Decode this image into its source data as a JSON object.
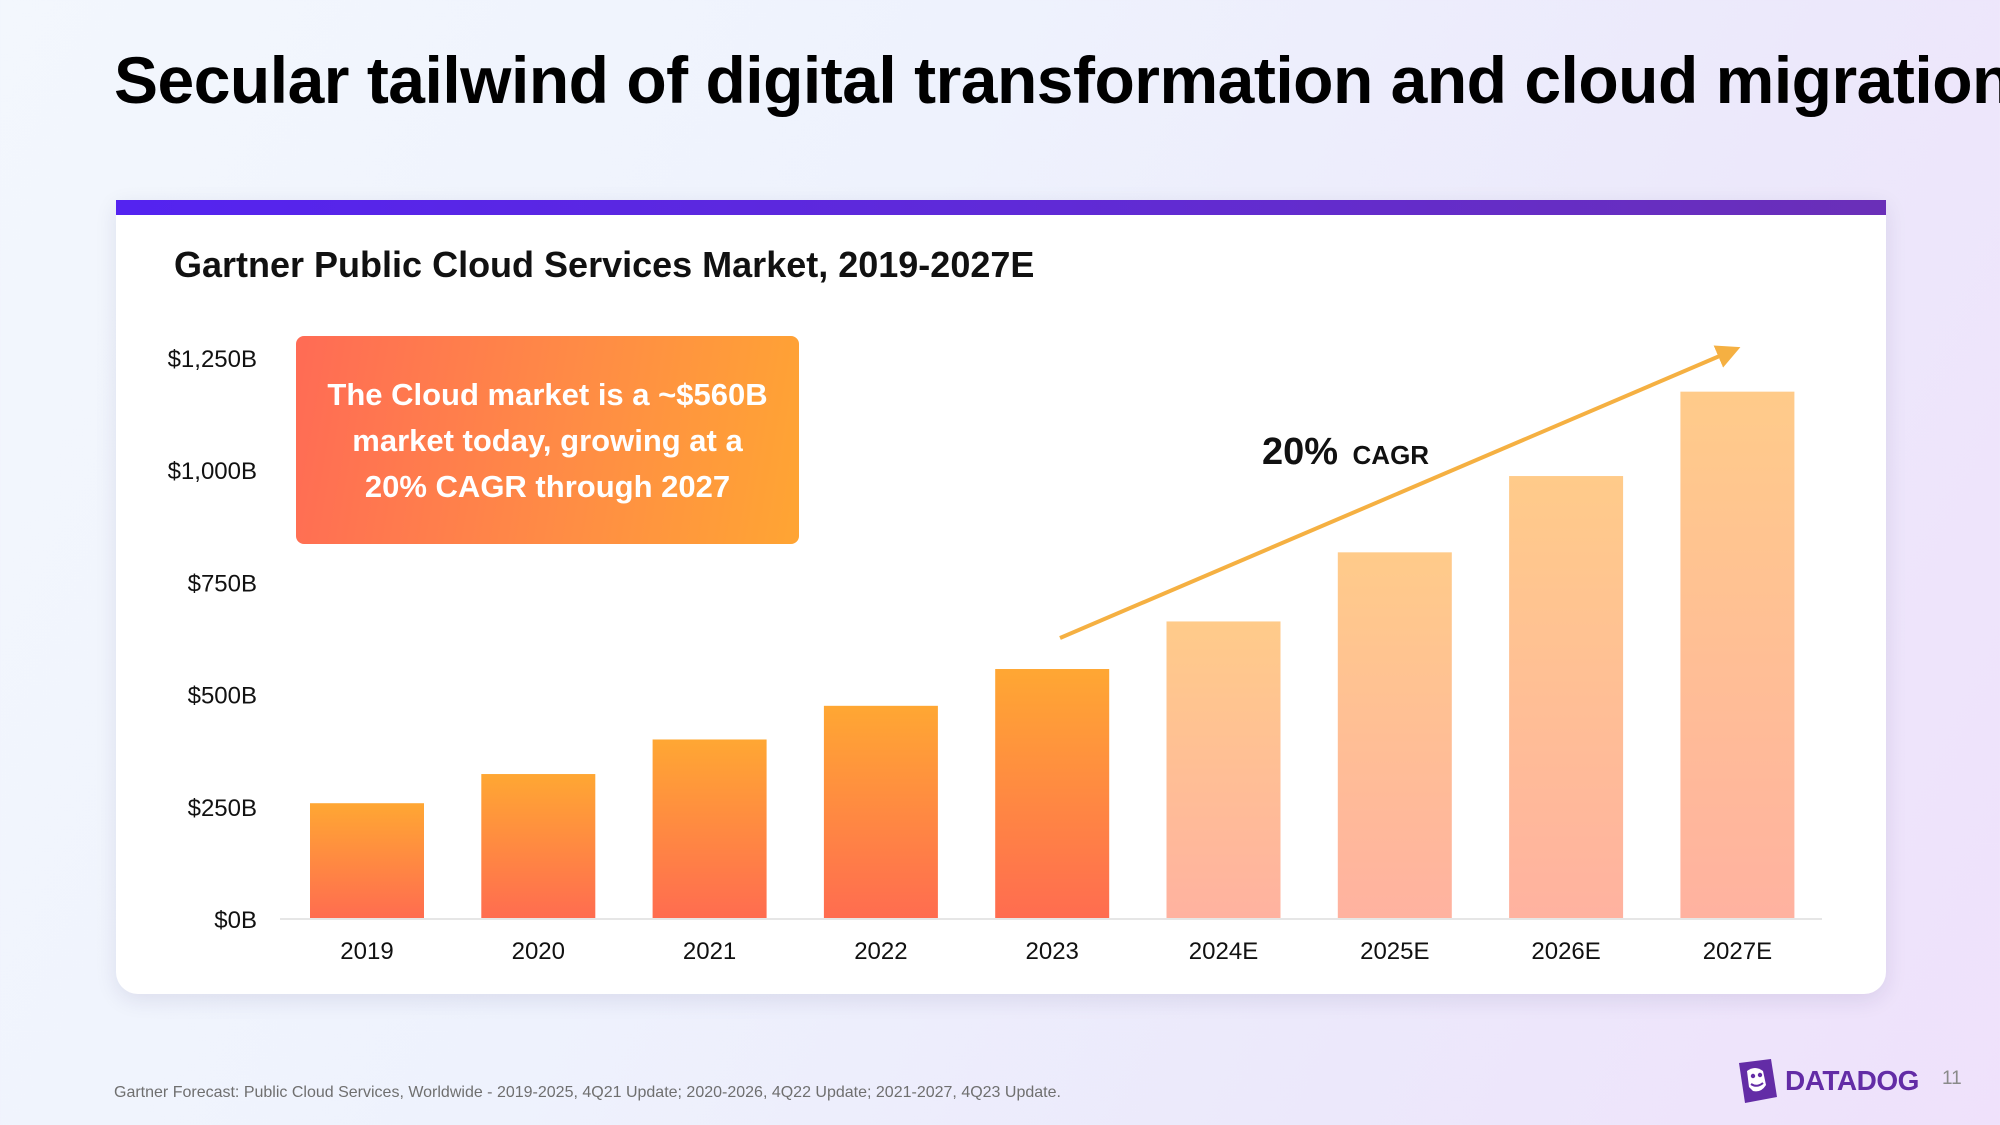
{
  "slide": {
    "title": "Secular tailwind of digital transformation and cloud migration",
    "footnote": "Gartner Forecast: Public Cloud Services, Worldwide - 2019-2025, 4Q21 Update; 2020-2026, 4Q22 Update; 2021-2027, 4Q23 Update.",
    "page_number": "11",
    "logo_text": "DATADOG"
  },
  "callout": {
    "lines": [
      "The Cloud market is a ~$560B",
      "market today, growing at a",
      "20% CAGR through 2027"
    ]
  },
  "annotation": {
    "pct": "20%",
    "label": "CAGR"
  },
  "colors": {
    "brand_purple": "#632ca6",
    "bar_actual_top": "#ffa733",
    "bar_actual_bottom": "#ff6c50",
    "bar_estimate_top": "#ffcb8a",
    "bar_estimate_bottom": "#ffb2a0",
    "arrow": "#f5b042"
  },
  "chart_data": {
    "type": "bar",
    "title": "Gartner Public Cloud Services Market, 2019-2027E",
    "categories": [
      "2019",
      "2020",
      "2021",
      "2022",
      "2023",
      "2024E",
      "2025E",
      "2026E",
      "2027E"
    ],
    "values": [
      258,
      323,
      400,
      475,
      557,
      663,
      817,
      987,
      1175
    ],
    "estimate": [
      false,
      false,
      false,
      false,
      false,
      true,
      true,
      true,
      true
    ],
    "y_ticks": [
      0,
      250,
      500,
      750,
      1000,
      1250
    ],
    "y_tick_labels": [
      "$0B",
      "$250B",
      "$500B",
      "$750B",
      "$1,000B",
      "$1,250B"
    ],
    "ylim": [
      0,
      1250
    ],
    "xlabel": "",
    "ylabel": "",
    "grid": false,
    "legend": "none"
  }
}
